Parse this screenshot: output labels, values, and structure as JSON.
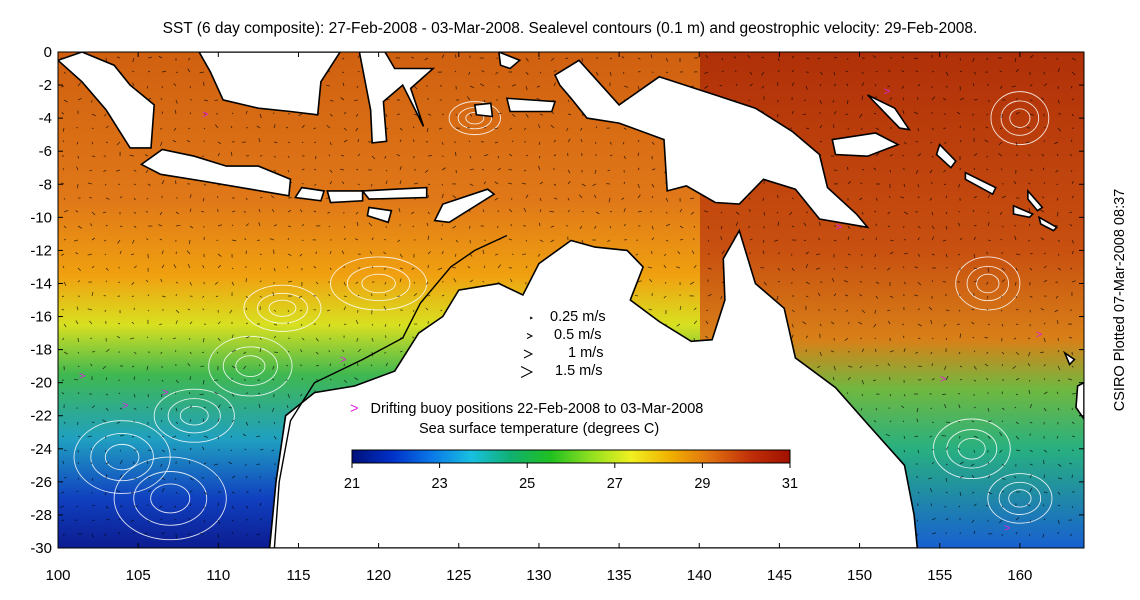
{
  "title": "SST (6 day composite): 27-Feb-2008 - 03-Mar-2008. Sealevel contours (0.1 m) and geostrophic velocity: 29-Feb-2008.",
  "credit": "CSIRO Plotted 07-Mar-2008 08:37",
  "axes": {
    "x_ticks": [
      "100",
      "105",
      "110",
      "115",
      "120",
      "125",
      "130",
      "135",
      "140",
      "145",
      "150",
      "155",
      "160"
    ],
    "y_ticks": [
      "0",
      "-2",
      "-4",
      "-6",
      "-8",
      "-10",
      "-12",
      "-14",
      "-16",
      "-18",
      "-20",
      "-22",
      "-24",
      "-26",
      "-28",
      "-30"
    ],
    "lon_range": [
      100,
      164
    ],
    "lat_range": [
      -30,
      0
    ]
  },
  "velocity_key": [
    "0.25 m/s",
    "0.5 m/s",
    "1 m/s",
    "1.5 m/s"
  ],
  "buoy_legend": {
    "symbol": ">",
    "text": "Drifting buoy positions 22-Feb-2008 to 03-Mar-2008",
    "color": "#e020e0"
  },
  "colorbar": {
    "title": "Sea surface temperature (degrees C)",
    "range": [
      21,
      31
    ],
    "ticks": [
      "21",
      "23",
      "25",
      "27",
      "29",
      "31"
    ],
    "colors": [
      "#00107a",
      "#0030c8",
      "#0a78e8",
      "#18c0e0",
      "#10b070",
      "#20c020",
      "#90e020",
      "#f0f020",
      "#f0b000",
      "#e07010",
      "#c03008",
      "#a01000"
    ]
  },
  "colors": {
    "land": "#ffffff",
    "coast": "#000000",
    "contour": "#ffffff"
  }
}
